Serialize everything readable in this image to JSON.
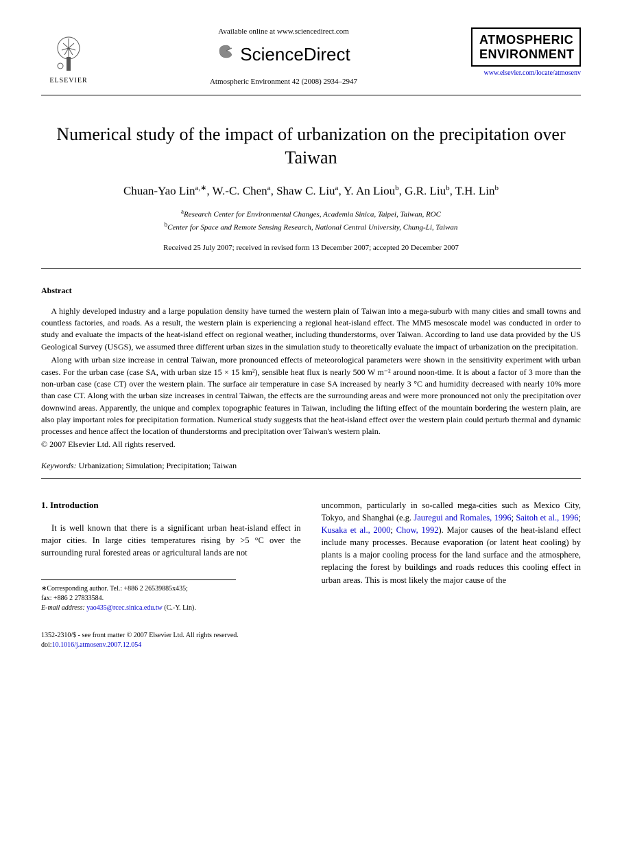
{
  "header": {
    "publisher": "ELSEVIER",
    "available_text": "Available online at www.sciencedirect.com",
    "sciencedirect": "ScienceDirect",
    "journal_ref": "Atmospheric Environment 42 (2008) 2934–2947",
    "journal_name_line1": "ATMOSPHERIC",
    "journal_name_line2": "ENVIRONMENT",
    "journal_link": "www.elsevier.com/locate/atmosenv"
  },
  "title": "Numerical study of the impact of urbanization on the precipitation over Taiwan",
  "authors_html": "Chuan-Yao Lin<sup>a,∗</sup>, W.-C. Chen<sup>a</sup>, Shaw C. Liu<sup>a</sup>, Y. An Liou<sup>b</sup>, G.R. Liu<sup>b</sup>, T.H. Lin<sup>b</sup>",
  "affiliations": {
    "a": "Research Center for Environmental Changes, Academia Sinica, Taipei, Taiwan, ROC",
    "b": "Center for Space and Remote Sensing Research, National Central University, Chung-Li, Taiwan"
  },
  "dates": "Received 25 July 2007; received in revised form 13 December 2007; accepted 20 December 2007",
  "abstract": {
    "heading": "Abstract",
    "para1": "A highly developed industry and a large population density have turned the western plain of Taiwan into a mega-suburb with many cities and small towns and countless factories, and roads. As a result, the western plain is experiencing a regional heat-island effect. The MM5 mesoscale model was conducted in order to study and evaluate the impacts of the heat-island effect on regional weather, including thunderstorms, over Taiwan. According to land use data provided by the US Geological Survey (USGS), we assumed three different urban sizes in the simulation study to theoretically evaluate the impact of urbanization on the precipitation.",
    "para2": "Along with urban size increase in central Taiwan, more pronounced effects of meteorological parameters were shown in the sensitivity experiment with urban cases. For the urban case (case SA, with urban size 15 × 15 km²), sensible heat flux is nearly 500 W m⁻² around noon-time. It is about a factor of 3 more than the non-urban case (case CT) over the western plain. The surface air temperature in case SA increased by nearly 3 °C and humidity decreased with nearly 10% more than case CT. Along with the urban size increases in central Taiwan, the effects are the surrounding areas and were more pronounced not only the precipitation over downwind areas. Apparently, the unique and complex topographic features in Taiwan, including the lifting effect of the mountain bordering the western plain, are also play important roles for precipitation formation. Numerical study suggests that the heat-island effect over the western plain could perturb thermal and dynamic processes and hence affect the location of thunderstorms and precipitation over Taiwan's western plain.",
    "copyright": "© 2007 Elsevier Ltd. All rights reserved."
  },
  "keywords": {
    "label": "Keywords:",
    "text": "Urbanization; Simulation; Precipitation; Taiwan"
  },
  "section1": {
    "heading": "1. Introduction",
    "col1_para": "It is well known that there is a significant urban heat-island effect in major cities. In large cities temperatures rising by >5 °C over the surrounding rural forested areas or agricultural lands are not",
    "col2_para_pre": "uncommon, particularly in so-called mega-cities such as Mexico City, Tokyo, and Shanghai (e.g. ",
    "ref1": "Jauregui and Romales, 1996",
    "ref2": "Saitoh et al., 1996",
    "ref3": "Kusaka et al., 2000",
    "ref4": "Chow, 1992",
    "col2_para_post": "). Major causes of the heat-island effect include many processes. Because evaporation (or latent heat cooling) by plants is a major cooling process for the land surface and the atmosphere, replacing the forest by buildings and roads reduces this cooling effect in urban areas. This is most likely the major cause of the"
  },
  "corresponding": {
    "line1": "∗Corresponding author. Tel.: +886 2 26539885x435;",
    "line2": "fax: +886 2 27833584.",
    "email_label": "E-mail address:",
    "email": "yao435@rcec.sinica.edu.tw",
    "email_suffix": "(C.-Y. Lin)."
  },
  "footer": {
    "issn": "1352-2310/$ - see front matter © 2007 Elsevier Ltd. All rights reserved.",
    "doi_label": "doi:",
    "doi": "10.1016/j.atmosenv.2007.12.054"
  },
  "colors": {
    "link": "#0000cc",
    "text": "#000000",
    "background": "#ffffff",
    "logo_orange": "#ff6600"
  },
  "typography": {
    "title_fontsize": 26,
    "authors_fontsize": 17,
    "abstract_fontsize": 12,
    "body_fontsize": 12.5,
    "footer_fontsize": 10,
    "font_family": "Georgia, Times New Roman, serif"
  }
}
